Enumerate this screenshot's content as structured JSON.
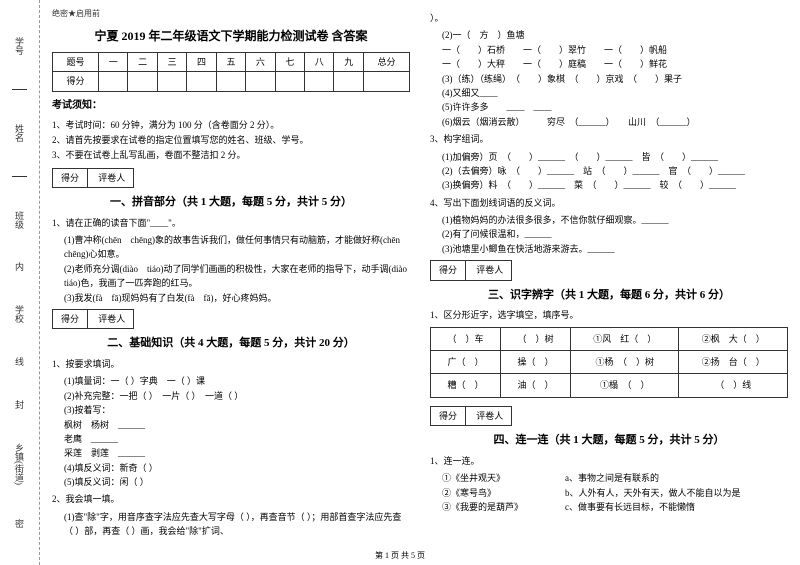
{
  "binding": {
    "labels": [
      "学号",
      "姓名",
      "班级",
      "学校",
      "乡镇(街道)"
    ],
    "marks": [
      "内",
      "线",
      "封",
      "密"
    ]
  },
  "secret": "绝密★启用前",
  "title": "宁夏 2019 年二年级语文下学期能力检测试卷 含答案",
  "scoreTable": {
    "headers": [
      "题号",
      "一",
      "二",
      "三",
      "四",
      "五",
      "六",
      "七",
      "八",
      "九",
      "总分"
    ],
    "row2": "得分"
  },
  "rulesTitle": "考试须知：",
  "rules": [
    "1、考试时间：60 分钟，满分为 100 分（含卷面分 2 分）。",
    "2、请首先按要求在试卷的指定位置填写您的姓名、班级、学号。",
    "3、不要在试卷上乱写乱画，卷面不整洁扣 2 分。"
  ],
  "scoreboxLabels": [
    "得分",
    "评卷人"
  ],
  "sec1": {
    "title": "一、拼音部分（共 1 大题，每题 5 分，共计 5 分）",
    "q1": "1、请在正确的读音下面\"____\"。",
    "sub1": "(1)曹冲称(chēn　chēng)象的故事告诉我们，做任何事情只有动脑筋，才能做好称(chēn　chēng)心如意。",
    "sub2": "(2)老师充分调(diào　tiáo)动了同学们画画的积极性，大家在老师的指导下，动手调(diào　tiáo)色，我画了一匹奔跑的红马。",
    "sub3": "(3)我发(fà　fā)现妈妈有了白发(fà　fā)，好心疼妈妈。"
  },
  "sec2": {
    "title": "二、基础知识（共 4 大题，每题 5 分，共计 20 分）",
    "q1": "1、按要求填词。",
    "sub1": "(1)填量词：一（  ）字典　一（  ）课",
    "sub2": "(2)补充完整：一把（  ）　一片（  ）　一道（  ）",
    "sub3": "(3)按着写：",
    "sub3a": "枫树　杨树　______",
    "sub3b": "老鹰　______",
    "sub3c": "采莲　剥莲　______",
    "sub4": "(4)填反义词：新奇（  ）",
    "sub5": "(5)填反义词：闲（  ）",
    "q2": "2、我会填一填。",
    "sub6": "(1)查\"除\"字，用音序查字法应先查大写字母（  ），再查音节（  ）；用部首查字法应先查（  ）部，再查（  ）画，我会给\"除\"扩词、"
  },
  "right1": {
    "pre": "）。",
    "sub2a": "(2)一（　方　）鱼塘",
    "sub2b": "一（　　）石桥　　一（　　）翠竹　　一（　　）帆船",
    "sub2c": "一（　　）大秤　　一（　　）庭稿　　一（　　）鲜花",
    "sub3": "(3)（练）（练绳）　（　　）象棋　（　　）京戏　（　　）果子",
    "sub4": "(4)又细又____",
    "sub5": "(5)许许多多　　____　____",
    "sub6": "(6)烟云（烟消云散）　　　穷尽　（______）　　山川　（______）",
    "q3": "3、构字组词。",
    "sub3a": "(1)加偏旁）页　（　　）______　（　　）______　皆　（　　）______",
    "sub3b": "(2)（去偏旁）咏　（　　）______　站　（　　）______　官　（　　）______",
    "sub3c": "(3)换偏旁）料　（　　）______　菜　（　　）______　较　（　　）______",
    "q4": "4、写出下面划线词语的反义词。",
    "sub4a": "(1)植物妈妈的办法很多很多，不信你就仔细观察。______",
    "sub4b": "(2)有了问候很温和，______",
    "sub4c": "(3)池塘里小鲫鱼在快活地游来游去。______"
  },
  "sec3": {
    "title": "三、识字辨字（共 1 大题，每题 6 分，共计 6 分）",
    "q1": "1、区分形近字，选字填空，填序号。",
    "table": {
      "r1": [
        "（　）车",
        "（　）树",
        "①风　红（　）",
        "②枫　大（　）"
      ],
      "r2": [
        "广（　）",
        "操（　）",
        "①杨　（　）树",
        "②扬　台（　）"
      ],
      "r3": [
        "糟（　）",
        "油（　）",
        "①榻　（　）",
        "（　）线"
      ]
    }
  },
  "sec4": {
    "title": "四、连一连（共 1 大题，每题 5 分，共计 5 分）",
    "q1": "1、连一连。",
    "left": [
      "①《坐井观天》",
      "②《寒号鸟》",
      "③《我要的是葫芦》"
    ],
    "right": [
      "a、事物之间是有联系的",
      "b、人外有人，天外有天，做人不能自以为是",
      "c、做事要有长远目标，不能懒惰"
    ]
  },
  "footer": "第 1 页 共 5 页"
}
